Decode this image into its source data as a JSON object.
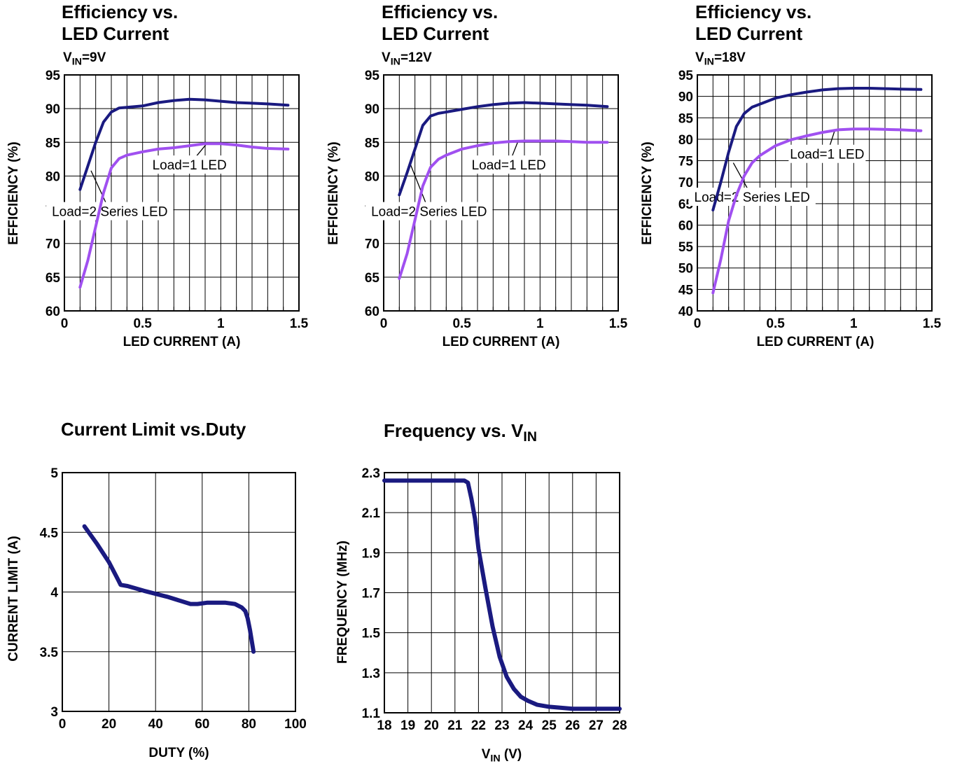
{
  "chart_data": [
    {
      "id": "eff9",
      "type": "line",
      "title": [
        "Efficiency vs.",
        "LED Current"
      ],
      "subtitle": {
        "base": "V",
        "sub": "IN",
        "rest": "=9V"
      },
      "xlabel": "LED CURRENT (A)",
      "ylabel": "EFFICIENCY (%)",
      "xlim": [
        0,
        1.5
      ],
      "ylim": [
        60,
        95
      ],
      "xticks": [
        "0",
        "0.5",
        "1",
        "1.5"
      ],
      "yticks": [
        "60",
        "65",
        "70",
        "75",
        "80",
        "85",
        "90",
        "95"
      ],
      "grid": true,
      "series": [
        {
          "name": "Load=1 LED",
          "color": "#1a1a80",
          "x": [
            0.1,
            0.15,
            0.2,
            0.25,
            0.3,
            0.35,
            0.4,
            0.5,
            0.6,
            0.7,
            0.8,
            0.9,
            1.0,
            1.1,
            1.2,
            1.3,
            1.43
          ],
          "y": [
            78,
            81.5,
            85,
            88,
            89.5,
            90.1,
            90.2,
            90.4,
            90.9,
            91.2,
            91.4,
            91.3,
            91.1,
            90.9,
            90.8,
            90.7,
            90.5
          ]
        },
        {
          "name": "Load=2 Series LED",
          "color": "#a050f0",
          "x": [
            0.1,
            0.15,
            0.2,
            0.25,
            0.3,
            0.35,
            0.4,
            0.5,
            0.6,
            0.7,
            0.8,
            0.9,
            1.0,
            1.1,
            1.2,
            1.3,
            1.43
          ],
          "y": [
            63.5,
            67.5,
            72.5,
            77.5,
            81.2,
            82.6,
            83.1,
            83.6,
            84.0,
            84.2,
            84.5,
            84.8,
            84.8,
            84.6,
            84.3,
            84.1,
            84.0
          ]
        }
      ],
      "annotations": [
        {
          "text": "Load=1 LED",
          "x": 0.8,
          "y": 81.7,
          "tx": 0.91,
          "ty": 84.8
        },
        {
          "text": "Load=2 Series LED",
          "x": 0.29,
          "y": 74.8,
          "tx": 0.17,
          "ty": 80.8
        }
      ]
    },
    {
      "id": "eff12",
      "type": "line",
      "title": [
        "Efficiency vs.",
        "LED Current"
      ],
      "subtitle": {
        "base": "V",
        "sub": "IN",
        "rest": "=12V"
      },
      "xlabel": "LED CURRENT (A)",
      "ylabel": "EFFICIENCY (%)",
      "xlim": [
        0,
        1.5
      ],
      "ylim": [
        60,
        95
      ],
      "xticks": [
        "0",
        "0.5",
        "1",
        "1.5"
      ],
      "yticks": [
        "60",
        "65",
        "70",
        "75",
        "80",
        "85",
        "90",
        "95"
      ],
      "grid": true,
      "series": [
        {
          "name": "Load=1 LED",
          "color": "#1a1a80",
          "x": [
            0.1,
            0.15,
            0.2,
            0.25,
            0.3,
            0.35,
            0.4,
            0.5,
            0.6,
            0.7,
            0.8,
            0.9,
            1.0,
            1.1,
            1.2,
            1.3,
            1.43
          ],
          "y": [
            77.2,
            80.5,
            84.0,
            87.5,
            88.9,
            89.3,
            89.5,
            89.9,
            90.3,
            90.6,
            90.8,
            90.9,
            90.8,
            90.7,
            90.6,
            90.5,
            90.3
          ]
        },
        {
          "name": "Load=2 Series LED",
          "color": "#a050f0",
          "x": [
            0.1,
            0.15,
            0.2,
            0.25,
            0.3,
            0.35,
            0.4,
            0.5,
            0.6,
            0.7,
            0.8,
            0.9,
            1.0,
            1.1,
            1.2,
            1.3,
            1.43
          ],
          "y": [
            64.8,
            68.5,
            73.5,
            78.5,
            81.3,
            82.5,
            83.1,
            84.0,
            84.5,
            84.9,
            85.1,
            85.2,
            85.2,
            85.2,
            85.1,
            85.0,
            85.0
          ]
        }
      ],
      "annotations": [
        {
          "text": "Load=1 LED",
          "x": 0.8,
          "y": 81.7,
          "tx": 0.86,
          "ty": 85.2
        },
        {
          "text": "Load=2 Series LED",
          "x": 0.29,
          "y": 74.8,
          "tx": 0.17,
          "ty": 81.8
        }
      ]
    },
    {
      "id": "eff18",
      "type": "line",
      "title": [
        "Efficiency vs.",
        "LED Current"
      ],
      "subtitle": {
        "base": "V",
        "sub": "IN",
        "rest": "=18V"
      },
      "xlabel": "LED CURRENT (A)",
      "ylabel": "EFFICIENCY (%)",
      "xlim": [
        0,
        1.5
      ],
      "ylim": [
        40,
        95
      ],
      "xticks": [
        "0",
        "0.5",
        "1",
        "1.5"
      ],
      "yticks": [
        "40",
        "45",
        "50",
        "55",
        "60",
        "65",
        "70",
        "75",
        "80",
        "85",
        "90",
        "95"
      ],
      "grid": true,
      "series": [
        {
          "name": "Load=1 LED",
          "color": "#1a1a80",
          "x": [
            0.1,
            0.15,
            0.2,
            0.25,
            0.3,
            0.35,
            0.4,
            0.5,
            0.6,
            0.7,
            0.8,
            0.9,
            1.0,
            1.1,
            1.2,
            1.3,
            1.43
          ],
          "y": [
            63.5,
            70,
            77,
            83,
            86,
            87.5,
            88.2,
            89.6,
            90.4,
            91.0,
            91.5,
            91.8,
            91.9,
            91.9,
            91.8,
            91.7,
            91.6
          ]
        },
        {
          "name": "Load=2 Series LED",
          "color": "#a050f0",
          "x": [
            0.1,
            0.15,
            0.2,
            0.25,
            0.3,
            0.35,
            0.4,
            0.5,
            0.6,
            0.7,
            0.8,
            0.9,
            1.0,
            1.1,
            1.2,
            1.3,
            1.43
          ],
          "y": [
            44.2,
            52,
            61,
            67,
            71.5,
            74.5,
            76.2,
            78.5,
            79.9,
            80.8,
            81.6,
            82.2,
            82.4,
            82.4,
            82.3,
            82.2,
            82.0
          ]
        }
      ],
      "annotations": [
        {
          "text": "Load=1 LED",
          "x": 0.83,
          "y": 76.6,
          "tx": 0.88,
          "ty": 82.2
        },
        {
          "text": "Load=2 Series LED",
          "x": 0.35,
          "y": 66.6,
          "tx": 0.23,
          "ty": 74.5
        }
      ]
    },
    {
      "id": "ilim",
      "type": "line",
      "title": [
        "Current Limit vs.Duty"
      ],
      "xlabel": "DUTY (%)",
      "ylabel": "CURRENT LIMIT (A)",
      "xlim": [
        0,
        100
      ],
      "ylim": [
        3,
        5
      ],
      "xticks": [
        "0",
        "20",
        "40",
        "60",
        "80",
        "100"
      ],
      "yticks": [
        "3",
        "3.5",
        "4",
        "4.5",
        "5"
      ],
      "grid": true,
      "series": [
        {
          "color": "#1a1a80",
          "x": [
            9.5,
            15,
            20,
            24,
            25,
            28,
            35,
            45,
            55,
            58,
            62,
            70,
            74,
            77,
            78.5,
            79.5,
            80.5,
            82
          ],
          "y": [
            4.55,
            4.4,
            4.25,
            4.1,
            4.06,
            4.05,
            4.01,
            3.96,
            3.9,
            3.9,
            3.91,
            3.91,
            3.9,
            3.87,
            3.84,
            3.78,
            3.68,
            3.5
          ]
        }
      ]
    },
    {
      "id": "freq",
      "type": "line",
      "title": {
        "base": "Frequency vs. V",
        "sub": "IN"
      },
      "xlabel": {
        "base": "V",
        "sub": "IN",
        "rest": " (V)"
      },
      "ylabel": "FREQUENCY (MHz)",
      "xlim": [
        18,
        28
      ],
      "ylim": [
        1.1,
        2.3
      ],
      "xticks": [
        "18",
        "19",
        "20",
        "21",
        "22",
        "23",
        "24",
        "25",
        "26",
        "27",
        "28"
      ],
      "yticks": [
        "1.1",
        "1.3",
        "1.5",
        "1.7",
        "1.9",
        "2.1",
        "2.3"
      ],
      "grid": true,
      "series": [
        {
          "color": "#1a1a80",
          "x": [
            18,
            19,
            20,
            21,
            21.4,
            21.55,
            21.7,
            21.85,
            22,
            22.3,
            22.6,
            22.9,
            23.2,
            23.5,
            23.8,
            24.1,
            24.5,
            25,
            26,
            27,
            28
          ],
          "y": [
            2.26,
            2.26,
            2.26,
            2.26,
            2.26,
            2.25,
            2.17,
            2.07,
            1.92,
            1.72,
            1.53,
            1.38,
            1.28,
            1.22,
            1.18,
            1.16,
            1.14,
            1.13,
            1.12,
            1.12,
            1.12
          ]
        }
      ]
    }
  ]
}
